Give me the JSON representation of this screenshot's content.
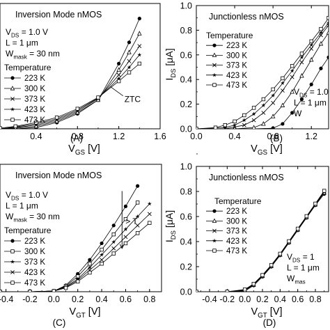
{
  "figure": {
    "width": 474,
    "height": 474
  },
  "chart_data": [
    {
      "id": "A",
      "type": "line",
      "caption": "(A)",
      "title": "Inversion Mode nMOS",
      "xlabel": "V_GS [V]",
      "ylabel": "",
      "xlim": [
        0.05,
        1.6
      ],
      "ylim": [
        0,
        1.0
      ],
      "xticks": [
        0.4,
        0.8,
        1.2,
        1.6
      ],
      "yticks": [],
      "annotations": [
        "V_DS = 1.0 V",
        "L = 1 μm",
        "W_mask = 30 nm"
      ],
      "legend": {
        "title": "Temperature",
        "placement": "bottom-left"
      },
      "ztc_label": "ZTC",
      "ztc_point": [
        1.12,
        0.335
      ],
      "series": [
        {
          "name": "223 K",
          "marker": "filled-circle",
          "x": [
            0.05,
            0.2,
            0.4,
            0.6,
            0.8,
            1.0,
            1.2,
            1.3,
            1.4
          ],
          "y": [
            0,
            0,
            0.01,
            0.05,
            0.12,
            0.23,
            0.52,
            0.69,
            0.88
          ]
        },
        {
          "name": "300 K",
          "marker": "open-triangle",
          "x": [
            0.05,
            0.2,
            0.4,
            0.6,
            0.8,
            1.0,
            1.2,
            1.3,
            1.4
          ],
          "y": [
            0,
            0.005,
            0.02,
            0.06,
            0.13,
            0.23,
            0.47,
            0.61,
            0.76
          ]
        },
        {
          "name": "373 K",
          "marker": "cross",
          "x": [
            0.05,
            0.2,
            0.4,
            0.6,
            0.8,
            1.0,
            1.2,
            1.3,
            1.4
          ],
          "y": [
            0,
            0.01,
            0.03,
            0.07,
            0.14,
            0.24,
            0.43,
            0.54,
            0.66
          ]
        },
        {
          "name": "423 K",
          "marker": "star",
          "x": [
            0.05,
            0.2,
            0.4,
            0.6,
            0.8,
            1.0,
            1.2,
            1.3,
            1.4
          ],
          "y": [
            0,
            0.015,
            0.04,
            0.08,
            0.15,
            0.245,
            0.4,
            0.49,
            0.59
          ]
        },
        {
          "name": "473 K",
          "marker": "open-square",
          "x": [
            0.05,
            0.2,
            0.4,
            0.6,
            0.8,
            1.0,
            1.2,
            1.3,
            1.4
          ],
          "y": [
            0.005,
            0.02,
            0.05,
            0.09,
            0.16,
            0.25,
            0.38,
            0.45,
            0.52
          ]
        }
      ]
    },
    {
      "id": "B",
      "type": "line",
      "caption": "(B)",
      "title": "Junctionless nMOS",
      "xlabel": "V_GS [V]",
      "ylabel": "I_DS [μA]",
      "xlim": [
        0.0,
        1.38
      ],
      "ylim": [
        0,
        1.0
      ],
      "xticks": [
        0.0,
        0.4,
        0.8,
        1.2
      ],
      "yticks": [
        0.0,
        0.2,
        0.4,
        0.6,
        0.8,
        1.0
      ],
      "annotations": [
        "V_DS = 1.0 V",
        "L = 1 μm",
        "W"
      ],
      "legend": {
        "title": "Temperature",
        "placement": "middle-left"
      },
      "series": [
        {
          "name": "223 K",
          "marker": "filled-circle",
          "x": [
            0,
            0.4,
            0.6,
            0.8,
            0.9,
            1.0,
            1.1,
            1.2,
            1.3,
            1.38
          ],
          "y": [
            0,
            0,
            0,
            0.005,
            0.04,
            0.13,
            0.24,
            0.36,
            0.49,
            0.58
          ]
        },
        {
          "name": "300 K",
          "marker": "open-triangle",
          "x": [
            0,
            0.4,
            0.6,
            0.7,
            0.8,
            0.9,
            1.0,
            1.1,
            1.2,
            1.3,
            1.38
          ],
          "y": [
            0,
            0,
            0.01,
            0.04,
            0.1,
            0.19,
            0.3,
            0.43,
            0.56,
            0.69,
            0.78
          ]
        },
        {
          "name": "373 K",
          "marker": "cross",
          "x": [
            0,
            0.3,
            0.5,
            0.6,
            0.7,
            0.8,
            0.9,
            1.0,
            1.1,
            1.2,
            1.3,
            1.38
          ],
          "y": [
            0,
            0,
            0.03,
            0.07,
            0.13,
            0.21,
            0.31,
            0.42,
            0.54,
            0.65,
            0.76,
            0.84
          ]
        },
        {
          "name": "423 K",
          "marker": "star",
          "x": [
            0,
            0.3,
            0.4,
            0.5,
            0.6,
            0.7,
            0.8,
            0.9,
            1.0,
            1.1,
            1.2,
            1.3,
            1.38
          ],
          "y": [
            0,
            0.01,
            0.03,
            0.07,
            0.12,
            0.19,
            0.27,
            0.37,
            0.47,
            0.58,
            0.68,
            0.78,
            0.86
          ]
        },
        {
          "name": "473 K",
          "marker": "open-square",
          "x": [
            0,
            0.2,
            0.3,
            0.4,
            0.5,
            0.6,
            0.7,
            0.8,
            0.9,
            1.0,
            1.1,
            1.2,
            1.3,
            1.38
          ],
          "y": [
            0,
            0.01,
            0.03,
            0.06,
            0.11,
            0.17,
            0.24,
            0.32,
            0.41,
            0.51,
            0.61,
            0.71,
            0.81,
            0.9
          ]
        }
      ]
    },
    {
      "id": "C",
      "type": "line",
      "caption": "(C)",
      "title": "Inversion Mode nMOS",
      "xlabel": "V_GT [V]",
      "ylabel": "",
      "xlim": [
        -0.45,
        0.9
      ],
      "ylim": [
        0,
        1.0
      ],
      "xticks": [
        -0.4,
        -0.2,
        0.0,
        0.2,
        0.4,
        0.6,
        0.8
      ],
      "xticklabels": [
        "-0.4",
        "-0.2",
        "0.0",
        "0.2",
        "0.4",
        "0.6",
        "0.8"
      ],
      "yticks": [],
      "annotations": [
        "V_DS = 1.0 V",
        "L = 1 μm",
        "W_mask = 30 nm"
      ],
      "legend": {
        "title": "Temperature",
        "placement": "bottom-left"
      },
      "arrow_label": "> T",
      "series": [
        {
          "name": "223 K",
          "marker": "filled-circle",
          "x": [
            -0.45,
            -0.2,
            0,
            0.1,
            0.2,
            0.3,
            0.4,
            0.5,
            0.6,
            0.7
          ],
          "y": [
            0,
            0,
            0.005,
            0.05,
            0.14,
            0.25,
            0.38,
            0.52,
            0.67,
            0.83
          ]
        },
        {
          "name": "300 K",
          "marker": "open-square",
          "x": [
            -0.45,
            -0.2,
            0,
            0.1,
            0.2,
            0.3,
            0.4,
            0.5,
            0.6,
            0.7
          ],
          "y": [
            0,
            0,
            0.005,
            0.045,
            0.12,
            0.22,
            0.33,
            0.45,
            0.57,
            0.7
          ]
        },
        {
          "name": "373 K",
          "marker": "star",
          "x": [
            -0.45,
            -0.2,
            0,
            0.1,
            0.2,
            0.3,
            0.4,
            0.5,
            0.6,
            0.7,
            0.8
          ],
          "y": [
            0,
            0,
            0.005,
            0.04,
            0.1,
            0.19,
            0.29,
            0.39,
            0.49,
            0.59,
            0.69
          ]
        },
        {
          "name": "423 K",
          "marker": "cross",
          "x": [
            -0.45,
            -0.2,
            0,
            0.1,
            0.2,
            0.3,
            0.4,
            0.5,
            0.6,
            0.7,
            0.8
          ],
          "y": [
            0,
            0,
            0.005,
            0.035,
            0.09,
            0.17,
            0.25,
            0.34,
            0.43,
            0.52,
            0.61
          ]
        },
        {
          "name": "473 K",
          "marker": "open-square",
          "x": [
            -0.45,
            -0.2,
            0,
            0.1,
            0.2,
            0.3,
            0.4,
            0.5,
            0.6,
            0.7,
            0.8
          ],
          "y": [
            0,
            0,
            0.005,
            0.03,
            0.08,
            0.15,
            0.22,
            0.3,
            0.38,
            0.46,
            0.54
          ]
        }
      ]
    },
    {
      "id": "D",
      "type": "line",
      "caption": "(D)",
      "title": "Junctionless nMOS",
      "xlabel": "V_GT [V]",
      "ylabel": "I_DS [μA]",
      "xlim": [
        -0.55,
        0.95
      ],
      "ylim": [
        0,
        1.0
      ],
      "xticks": [
        -0.4,
        -0.2,
        0.0,
        0.2,
        0.4,
        0.6,
        0.8
      ],
      "xticklabels": [
        "-0.4",
        "-0.2",
        "0.0",
        "0.2",
        "0.4",
        "0.6",
        "0.8"
      ],
      "yticks": [
        0.0,
        0.2,
        0.4,
        0.6,
        0.8,
        1.0
      ],
      "annotations": [
        "V_DS = 1",
        "L = 1 μm",
        "W_mas"
      ],
      "legend": {
        "title": "Temperature",
        "placement": "top-left"
      },
      "series": [
        {
          "name": "223 K",
          "marker": "filled-circle",
          "x": [
            -0.55,
            -0.2,
            0,
            0.1,
            0.2,
            0.3,
            0.4,
            0.5,
            0.6,
            0.7,
            0.8,
            0.9
          ],
          "y": [
            0,
            0,
            0.005,
            0.05,
            0.12,
            0.2,
            0.29,
            0.39,
            0.49,
            0.59,
            0.69,
            0.78
          ]
        },
        {
          "name": "300 K",
          "marker": "open-triangle",
          "x": [
            -0.55,
            -0.2,
            0,
            0.1,
            0.2,
            0.3,
            0.4,
            0.5,
            0.6,
            0.7,
            0.8,
            0.9
          ],
          "y": [
            0,
            0,
            0.01,
            0.055,
            0.125,
            0.205,
            0.295,
            0.395,
            0.495,
            0.595,
            0.695,
            0.79
          ]
        },
        {
          "name": "373 K",
          "marker": "cross",
          "x": [
            -0.55,
            -0.2,
            0,
            0.1,
            0.2,
            0.3,
            0.4,
            0.5,
            0.6,
            0.7,
            0.8,
            0.9
          ],
          "y": [
            0,
            0,
            0.012,
            0.058,
            0.128,
            0.208,
            0.298,
            0.398,
            0.498,
            0.598,
            0.698,
            0.795
          ]
        },
        {
          "name": "423 K",
          "marker": "star",
          "x": [
            -0.55,
            -0.2,
            0,
            0.1,
            0.2,
            0.3,
            0.4,
            0.5,
            0.6,
            0.7,
            0.8,
            0.9
          ],
          "y": [
            0,
            0,
            0.015,
            0.06,
            0.13,
            0.21,
            0.3,
            0.4,
            0.5,
            0.6,
            0.7,
            0.8
          ]
        },
        {
          "name": "473 K",
          "marker": "open-square",
          "x": [
            -0.55,
            -0.2,
            0,
            0.1,
            0.2,
            0.3,
            0.4,
            0.5,
            0.6,
            0.7,
            0.8,
            0.9
          ],
          "y": [
            0,
            0,
            0.018,
            0.063,
            0.133,
            0.213,
            0.303,
            0.403,
            0.503,
            0.603,
            0.703,
            0.805
          ]
        }
      ]
    }
  ]
}
